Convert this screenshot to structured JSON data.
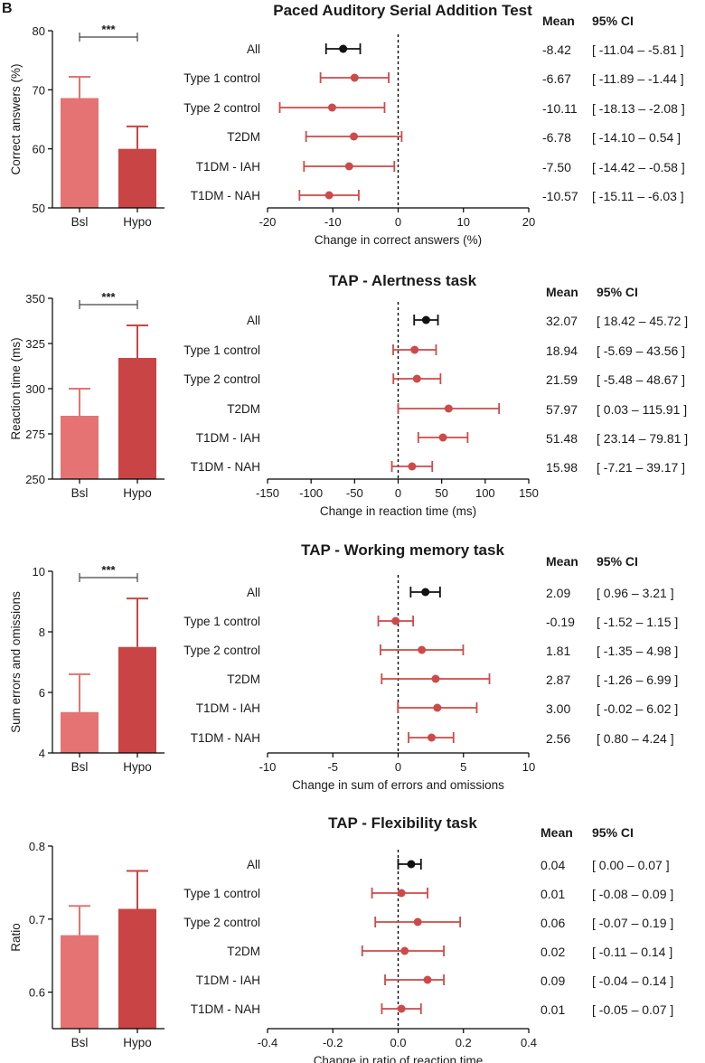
{
  "figure_label": "B",
  "headers": {
    "mean": "Mean",
    "ci": "95% CI"
  },
  "chart_data": [
    {
      "type": "bar",
      "title": "Paced Auditory Serial Addition Test",
      "ylabel": "Correct answers (%)",
      "ylim": [
        50,
        80
      ],
      "yticks": [
        50,
        60,
        70,
        80
      ],
      "categories": [
        "Bsl",
        "Hypo"
      ],
      "values": [
        68.6,
        60.0
      ],
      "errors": [
        3.6,
        3.8
      ],
      "significance": "***",
      "forest": {
        "type": "forest",
        "xlabel": "Change in correct answers (%)",
        "xlim": [
          -20,
          20
        ],
        "xticks": [
          -20,
          -10,
          0,
          10,
          20
        ],
        "rows": [
          {
            "label": "All",
            "mean": -8.42,
            "ci": [
              -11.04,
              -5.81
            ],
            "mean_text": "-8.42",
            "ci_text": "[ -11.04 – -5.81 ]"
          },
          {
            "label": "Type 1 control",
            "mean": -6.67,
            "ci": [
              -11.89,
              -1.44
            ],
            "mean_text": "-6.67",
            "ci_text": "[ -11.89 – -1.44 ]"
          },
          {
            "label": "Type 2 control",
            "mean": -10.11,
            "ci": [
              -18.13,
              -2.08
            ],
            "mean_text": "-10.11",
            "ci_text": "[ -18.13 – -2.08 ]"
          },
          {
            "label": "T2DM",
            "mean": -6.78,
            "ci": [
              -14.1,
              0.54
            ],
            "mean_text": "-6.78",
            "ci_text": "[ -14.10 – 0.54 ]"
          },
          {
            "label": "T1DM - IAH",
            "mean": -7.5,
            "ci": [
              -14.42,
              -0.58
            ],
            "mean_text": "-7.50",
            "ci_text": "[ -14.42 – -0.58 ]"
          },
          {
            "label": "T1DM - NAH",
            "mean": -10.57,
            "ci": [
              -15.11,
              -6.03
            ],
            "mean_text": "-10.57",
            "ci_text": "[ -15.11 – -6.03 ]"
          }
        ]
      }
    },
    {
      "type": "bar",
      "title": "TAP - Alertness task",
      "ylabel": "Reaction time (ms)",
      "ylim": [
        250,
        350
      ],
      "yticks": [
        250,
        275,
        300,
        325,
        350
      ],
      "categories": [
        "Bsl",
        "Hypo"
      ],
      "values": [
        285,
        317
      ],
      "errors": [
        15,
        18
      ],
      "significance": "***",
      "forest": {
        "type": "forest",
        "xlabel": "Change in reaction time (ms)",
        "xlim": [
          -150,
          150
        ],
        "xticks": [
          -150,
          -100,
          -50,
          0,
          50,
          100,
          150
        ],
        "rows": [
          {
            "label": "All",
            "mean": 32.07,
            "ci": [
              18.42,
              45.72
            ],
            "mean_text": "32.07",
            "ci_text": "[ 18.42 – 45.72 ]"
          },
          {
            "label": "Type 1 control",
            "mean": 18.94,
            "ci": [
              -5.69,
              43.56
            ],
            "mean_text": "18.94",
            "ci_text": "[ -5.69 – 43.56 ]"
          },
          {
            "label": "Type 2 control",
            "mean": 21.59,
            "ci": [
              -5.48,
              48.67
            ],
            "mean_text": "21.59",
            "ci_text": "[ -5.48 – 48.67 ]"
          },
          {
            "label": "T2DM",
            "mean": 57.97,
            "ci": [
              0.03,
              115.91
            ],
            "mean_text": "57.97",
            "ci_text": "[ 0.03 – 115.91 ]"
          },
          {
            "label": "T1DM - IAH",
            "mean": 51.48,
            "ci": [
              23.14,
              79.81
            ],
            "mean_text": "51.48",
            "ci_text": "[ 23.14 – 79.81 ]"
          },
          {
            "label": "T1DM - NAH",
            "mean": 15.98,
            "ci": [
              -7.21,
              39.17
            ],
            "mean_text": "15.98",
            "ci_text": "[ -7.21 – 39.17 ]"
          }
        ]
      }
    },
    {
      "type": "bar",
      "title": "TAP - Working memory task",
      "ylabel": "Sum errors and omissions",
      "ylim": [
        4,
        10
      ],
      "yticks": [
        4,
        6,
        8,
        10
      ],
      "categories": [
        "Bsl",
        "Hypo"
      ],
      "values": [
        5.35,
        7.5
      ],
      "errors": [
        1.25,
        1.6
      ],
      "significance": "***",
      "forest": {
        "type": "forest",
        "xlabel": "Change in sum of errors and omissions",
        "xlim": [
          -10,
          10
        ],
        "xticks": [
          -10,
          -5,
          0,
          5,
          10
        ],
        "rows": [
          {
            "label": "All",
            "mean": 2.09,
            "ci": [
              0.96,
              3.21
            ],
            "mean_text": "2.09",
            "ci_text": "[ 0.96 – 3.21 ]"
          },
          {
            "label": "Type 1 control",
            "mean": -0.19,
            "ci": [
              -1.52,
              1.15
            ],
            "mean_text": "-0.19",
            "ci_text": "[ -1.52 – 1.15 ]"
          },
          {
            "label": "Type 2 control",
            "mean": 1.81,
            "ci": [
              -1.35,
              4.98
            ],
            "mean_text": "1.81",
            "ci_text": "[ -1.35 – 4.98 ]"
          },
          {
            "label": "T2DM",
            "mean": 2.87,
            "ci": [
              -1.26,
              6.99
            ],
            "mean_text": "2.87",
            "ci_text": "[ -1.26 – 6.99 ]"
          },
          {
            "label": "T1DM - IAH",
            "mean": 3.0,
            "ci": [
              -0.02,
              6.02
            ],
            "mean_text": "3.00",
            "ci_text": "[ -0.02 – 6.02 ]"
          },
          {
            "label": "T1DM - NAH",
            "mean": 2.56,
            "ci": [
              0.8,
              4.24
            ],
            "mean_text": "2.56",
            "ci_text": "[ 0.80 – 4.24 ]"
          }
        ]
      }
    },
    {
      "type": "bar",
      "title": "TAP - Flexibility task",
      "ylabel": "Ratio",
      "ylim": [
        0.55,
        0.8
      ],
      "yticks": [
        0.6,
        0.7,
        0.8
      ],
      "categories": [
        "Bsl",
        "Hypo"
      ],
      "values": [
        0.678,
        0.714
      ],
      "errors": [
        0.04,
        0.052
      ],
      "significance": "",
      "forest": {
        "type": "forest",
        "xlabel": "Change in ratio of reaction time",
        "xlim": [
          -0.4,
          0.4
        ],
        "xticks": [
          -0.4,
          -0.2,
          0.0,
          0.2,
          0.4
        ],
        "rows": [
          {
            "label": "All",
            "mean": 0.04,
            "ci": [
              0.0,
              0.07
            ],
            "mean_text": "0.04",
            "ci_text": "[ 0.00 – 0.07 ]"
          },
          {
            "label": "Type 1 control",
            "mean": 0.01,
            "ci": [
              -0.08,
              0.09
            ],
            "mean_text": "0.01",
            "ci_text": "[ -0.08 – 0.09 ]"
          },
          {
            "label": "Type 2 control",
            "mean": 0.06,
            "ci": [
              -0.07,
              0.19
            ],
            "mean_text": "0.06",
            "ci_text": "[ -0.07 – 0.19 ]"
          },
          {
            "label": "T2DM",
            "mean": 0.02,
            "ci": [
              -0.11,
              0.14
            ],
            "mean_text": "0.02",
            "ci_text": "[ -0.11 – 0.14 ]"
          },
          {
            "label": "T1DM - IAH",
            "mean": 0.09,
            "ci": [
              -0.04,
              0.14
            ],
            "mean_text": "0.09",
            "ci_text": "[ -0.04 – 0.14 ]"
          },
          {
            "label": "T1DM - NAH",
            "mean": 0.01,
            "ci": [
              -0.05,
              0.07
            ],
            "mean_text": "0.01",
            "ci_text": "[ -0.05 – 0.07 ]"
          }
        ]
      }
    }
  ],
  "colors": {
    "bar_bsl": "#e57373",
    "bar_hypo": "#c94444",
    "group_marker": "#cd4a4a",
    "overall_marker": "#111111",
    "axis": "#000000"
  }
}
